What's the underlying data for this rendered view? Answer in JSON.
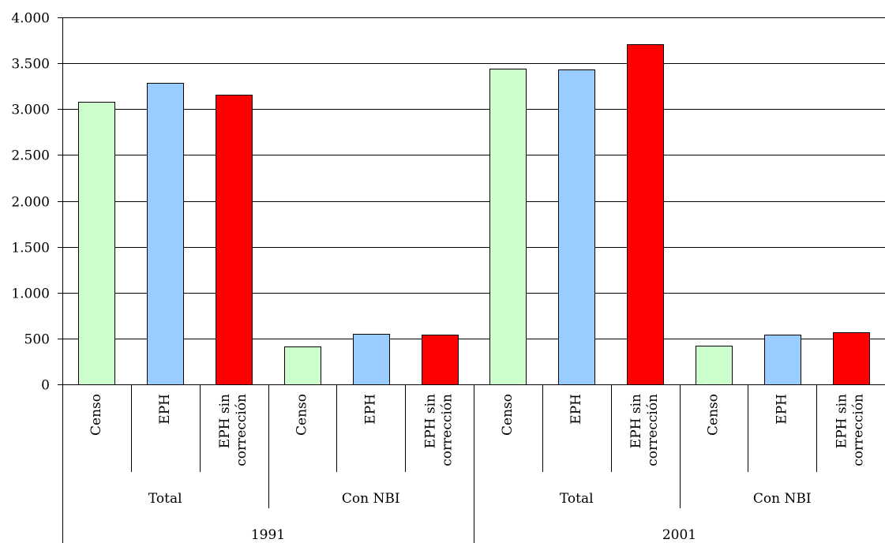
{
  "chart_data": {
    "type": "bar",
    "title": "",
    "xlabel": "",
    "ylabel": "",
    "ylim": [
      0,
      4000
    ],
    "yticks": [
      0,
      500,
      1000,
      1500,
      2000,
      2500,
      3000,
      3500,
      4000
    ],
    "ytick_labels": [
      "0",
      "500",
      "1.000",
      "1.500",
      "2.000",
      "2.500",
      "3.000",
      "3.500",
      "4.000"
    ],
    "grid": true,
    "legend": "none",
    "categories": [
      "Censo",
      "EPH",
      "EPH sin corrección",
      "Censo",
      "EPH",
      "EPH sin corrección",
      "Censo",
      "EPH",
      "EPH sin corrección",
      "Censo",
      "EPH",
      "EPH sin corrección"
    ],
    "category_lines": [
      [
        "Censo"
      ],
      [
        "EPH"
      ],
      [
        "EPH sin",
        "corrección"
      ],
      [
        "Censo"
      ],
      [
        "EPH"
      ],
      [
        "EPH sin",
        "corrección"
      ],
      [
        "Censo"
      ],
      [
        "EPH"
      ],
      [
        "EPH sin",
        "corrección"
      ],
      [
        "Censo"
      ],
      [
        "EPH"
      ],
      [
        "EPH sin",
        "corrección"
      ]
    ],
    "values": [
      3080,
      3290,
      3160,
      410,
      550,
      545,
      3440,
      3430,
      3710,
      420,
      540,
      570
    ],
    "bar_colors": [
      "#ccffcc",
      "#99ccff",
      "#ff0000",
      "#ccffcc",
      "#99ccff",
      "#ff0000",
      "#ccffcc",
      "#99ccff",
      "#ff0000",
      "#ccffcc",
      "#99ccff",
      "#ff0000"
    ],
    "subgroups": [
      "Total",
      "Con NBI",
      "Total",
      "Con NBI"
    ],
    "groups": [
      "1991",
      "2001"
    ]
  }
}
